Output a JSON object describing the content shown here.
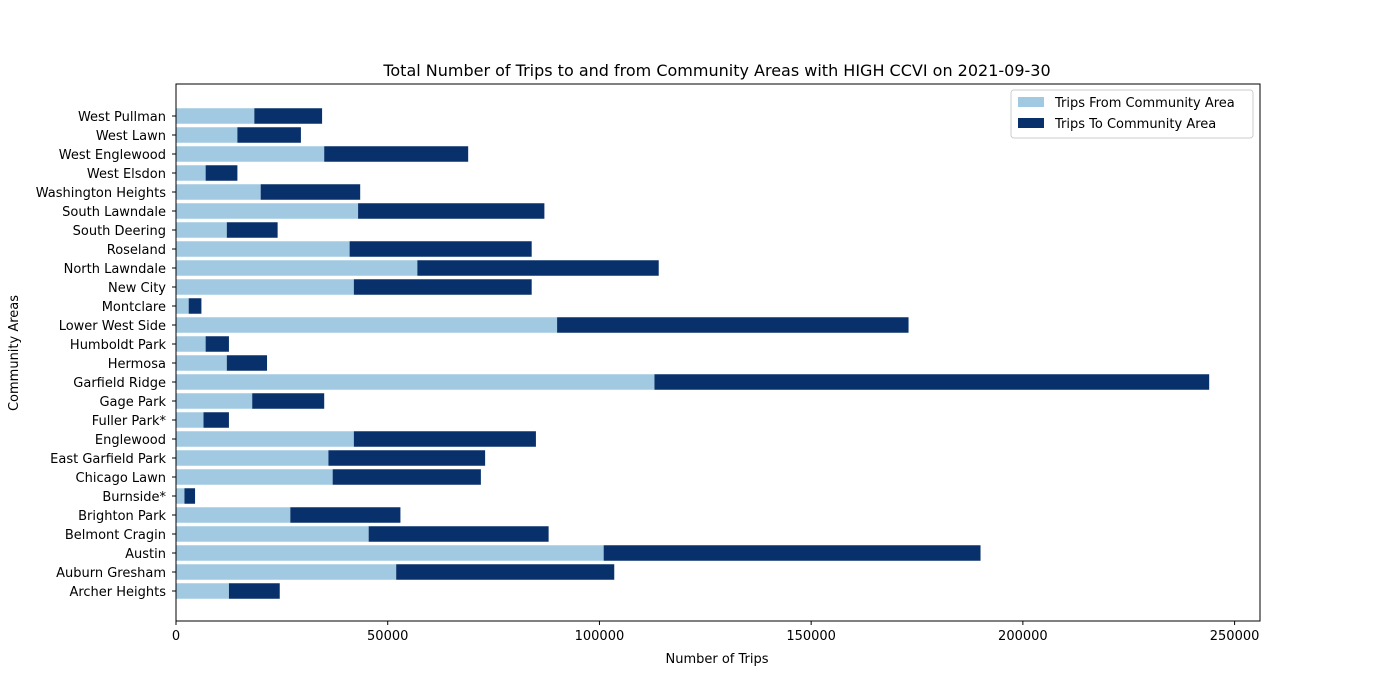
{
  "chart_data": {
    "type": "bar",
    "orientation": "horizontal",
    "stacked": true,
    "title": "Total Number of Trips to and from Community Areas with HIGH CCVI on 2021-09-30",
    "xlabel": "Number of Trips",
    "ylabel": "Community Areas",
    "xlim": [
      0,
      256000
    ],
    "xticks": [
      0,
      50000,
      100000,
      150000,
      200000,
      250000
    ],
    "grid": false,
    "legend_position": "top-right",
    "categories": [
      "Archer Heights",
      "Auburn Gresham",
      "Austin",
      "Belmont Cragin",
      "Brighton Park",
      "Burnside*",
      "Chicago Lawn",
      "East Garfield Park",
      "Englewood",
      "Fuller Park*",
      "Gage Park",
      "Garfield Ridge",
      "Hermosa",
      "Humboldt Park",
      "Lower West Side",
      "Montclare",
      "New City",
      "North Lawndale",
      "Roseland",
      "South Deering",
      "South Lawndale",
      "Washington Heights",
      "West Elsdon",
      "West Englewood",
      "West Lawn",
      "West Pullman"
    ],
    "series": [
      {
        "name": "Trips From Community Area",
        "color": "#a1cae2",
        "values": [
          12500,
          52000,
          101000,
          45500,
          27000,
          2000,
          37000,
          36000,
          42000,
          6500,
          18000,
          113000,
          12000,
          7000,
          90000,
          3000,
          42000,
          57000,
          41000,
          12000,
          43000,
          20000,
          7000,
          35000,
          14500,
          18500
        ]
      },
      {
        "name": "Trips To Community Area",
        "color": "#08306b",
        "values": [
          12000,
          51500,
          89000,
          42500,
          26000,
          2500,
          35000,
          37000,
          43000,
          6000,
          17000,
          131000,
          9500,
          5500,
          83000,
          3000,
          42000,
          57000,
          43000,
          12000,
          44000,
          23500,
          7500,
          34000,
          15000,
          16000
        ]
      }
    ]
  }
}
